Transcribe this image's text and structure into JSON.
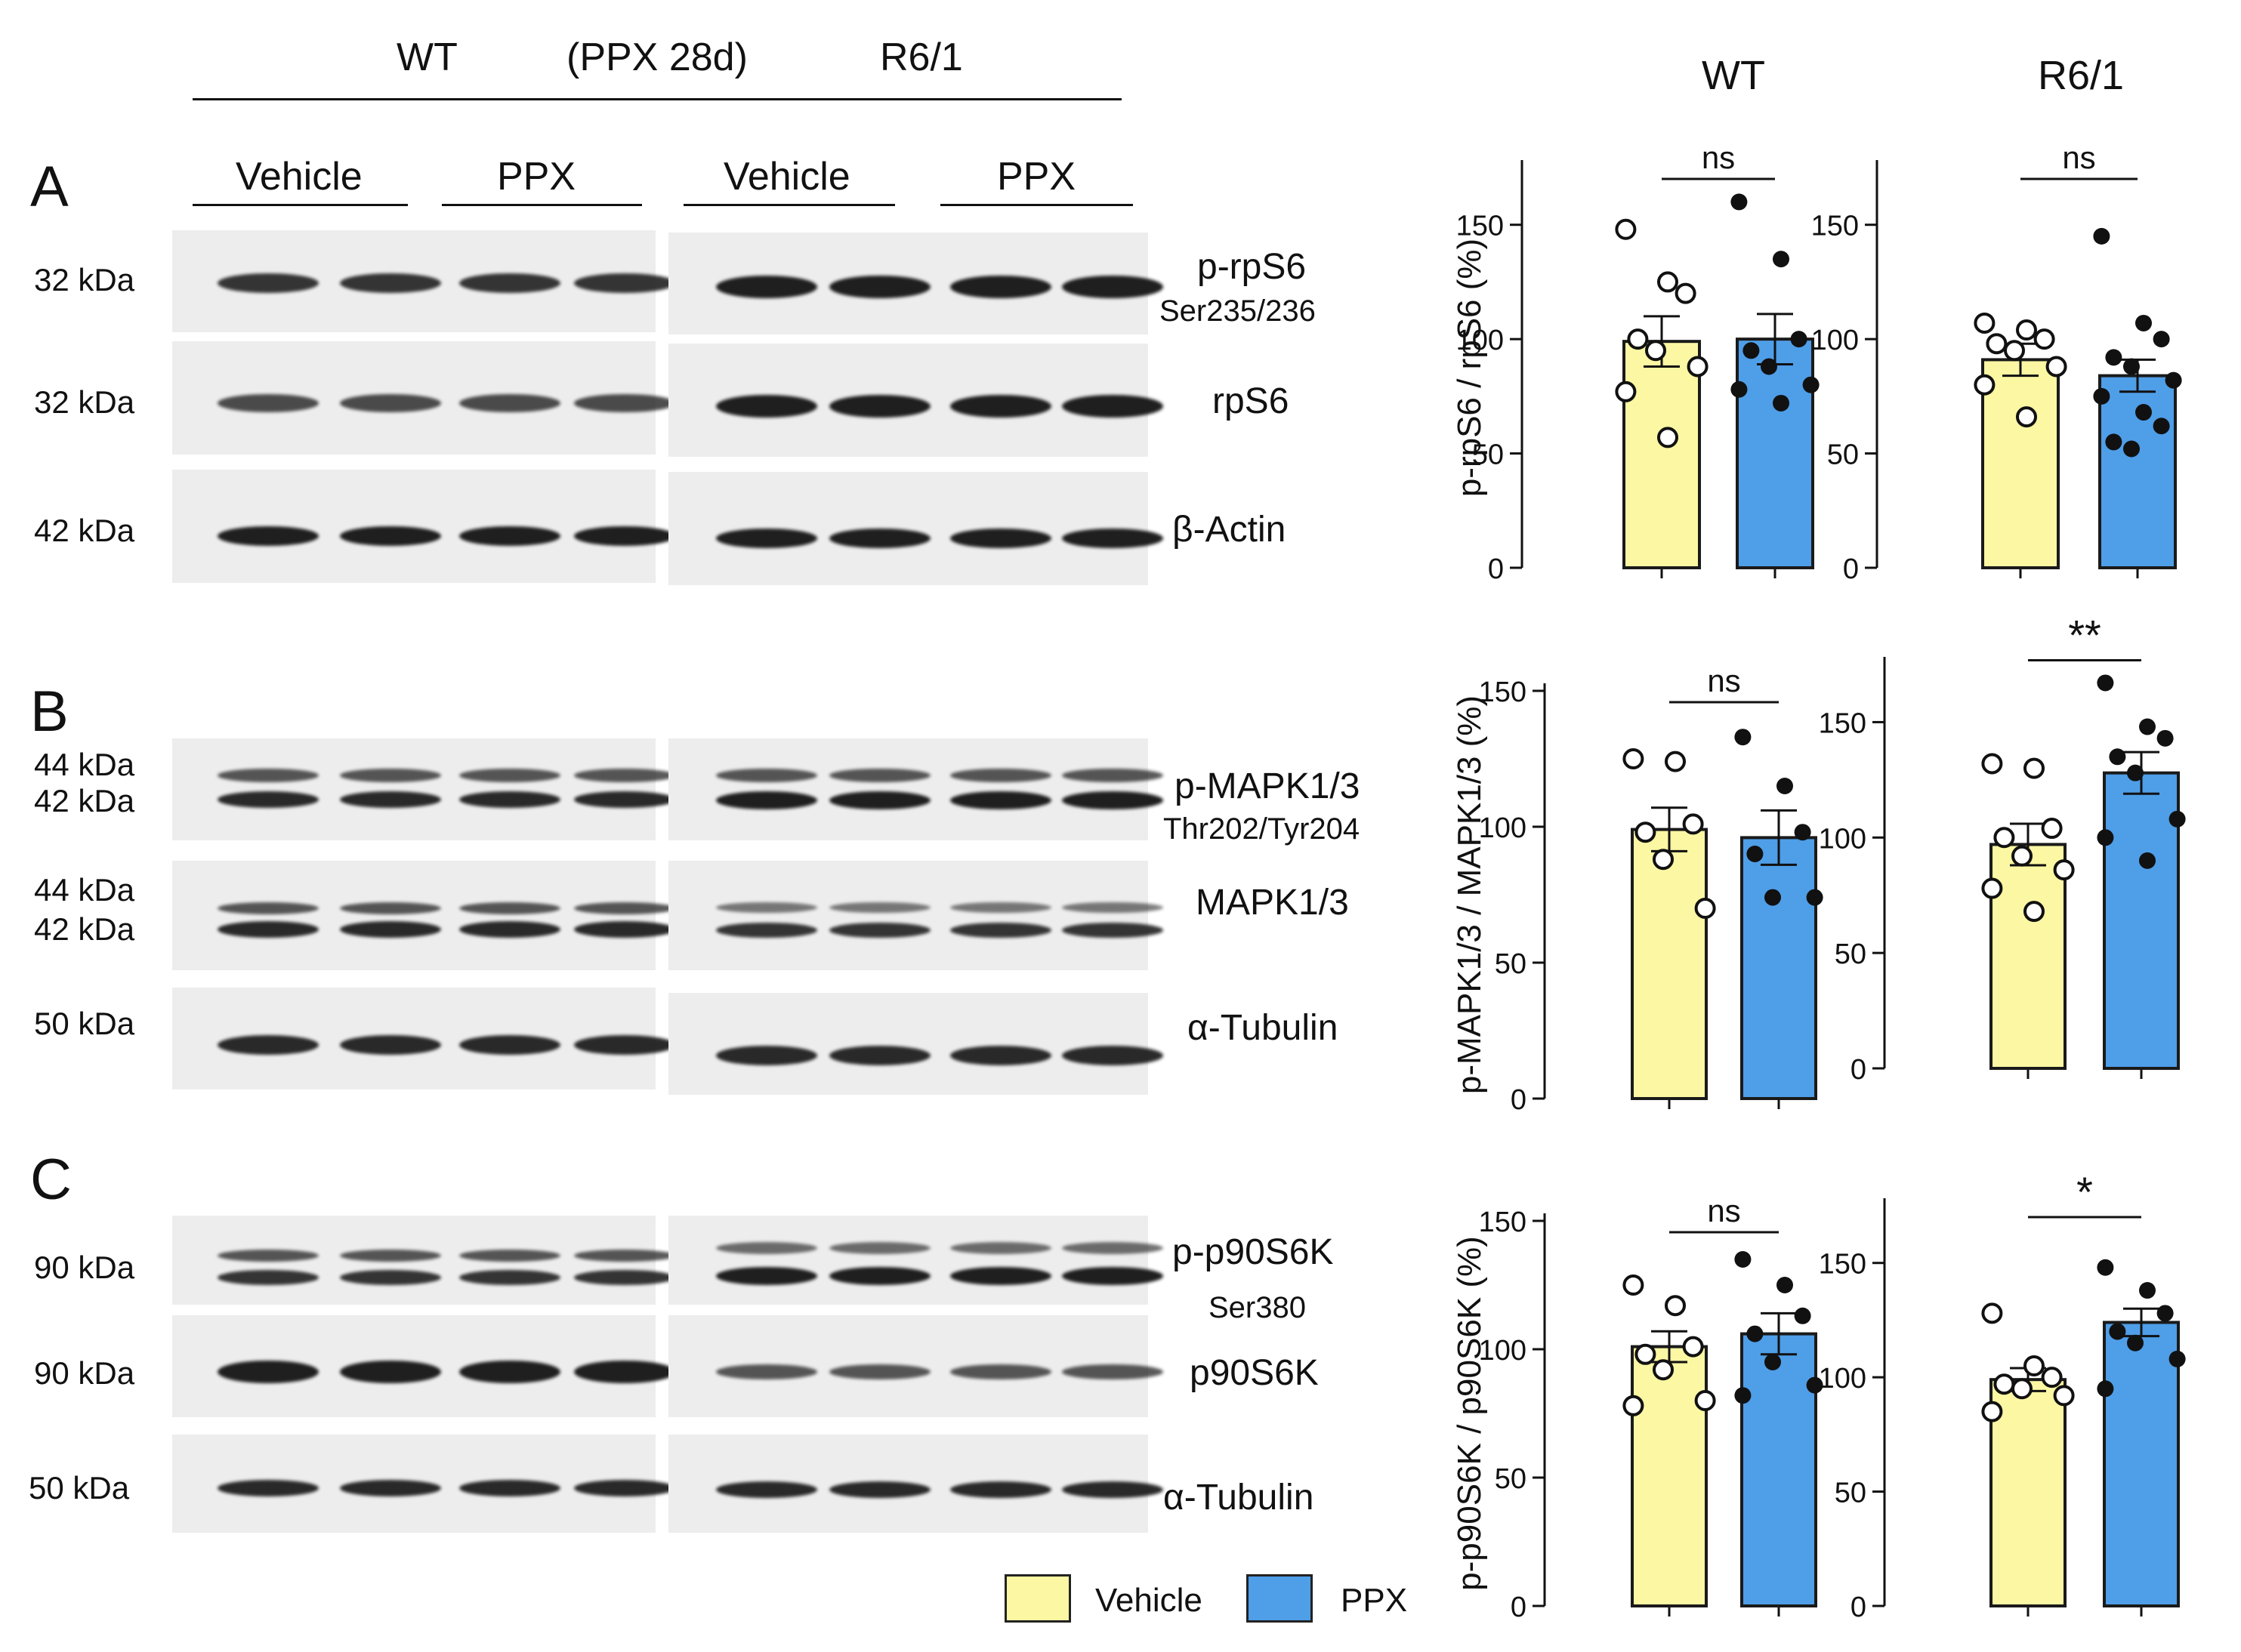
{
  "header": {
    "wt": "WT",
    "treatment": "(PPX 28d)",
    "r61": "R6/1"
  },
  "groups": {
    "vehicle": "Vehicle",
    "ppx": "PPX"
  },
  "panels": {
    "A": {
      "letter": "A",
      "rows": [
        {
          "kda": "32 kDa",
          "label": "p-rpS6",
          "sub": "Ser235/236"
        },
        {
          "kda": "32 kDa",
          "label": "rpS6",
          "sub": ""
        },
        {
          "kda": "42 kDa",
          "label": "β-Actin",
          "sub": ""
        }
      ]
    },
    "B": {
      "letter": "B",
      "rows": [
        {
          "kda": "44 kDa",
          "kda2": "42 kDa",
          "label": "p-MAPK1/3",
          "sub": "Thr202/Tyr204"
        },
        {
          "kda": "44 kDa",
          "kda2": "42 kDa",
          "label": "MAPK1/3",
          "sub": ""
        },
        {
          "kda": "50 kDa",
          "label": "α-Tubulin",
          "sub": ""
        }
      ]
    },
    "C": {
      "letter": "C",
      "rows": [
        {
          "kda": "90 kDa",
          "label": "p-p90S6K",
          "sub": "Ser380"
        },
        {
          "kda": "90 kDa",
          "label": "p90S6K",
          "sub": ""
        },
        {
          "kda": "50 kDa",
          "label": "α-Tubulin",
          "sub": ""
        }
      ]
    }
  },
  "colors": {
    "vehicle": "#fbf7a3",
    "ppx": "#4f9ee8",
    "bar_stroke": "#1a1a1a",
    "band": "#141414"
  },
  "legend": {
    "vehicle": "Vehicle",
    "ppx": "PPX"
  },
  "chart_data": [
    {
      "id": "A-WT",
      "type": "bar",
      "title": "WT",
      "ylabel": "p-rpS6 / rpS6 (%)",
      "ylim": [
        0,
        175
      ],
      "yticks": [
        0,
        50,
        100,
        150
      ],
      "sig": "ns",
      "categories": [
        "Vehicle",
        "PPX"
      ],
      "series": [
        {
          "name": "Vehicle",
          "mean": 99,
          "sem": 11,
          "points": [
            148,
            125,
            120,
            100,
            95,
            88,
            77,
            57
          ]
        },
        {
          "name": "PPX",
          "mean": 100,
          "sem": 11,
          "points": [
            160,
            135,
            100,
            95,
            88,
            80,
            78,
            72
          ]
        }
      ]
    },
    {
      "id": "A-R61",
      "type": "bar",
      "title": "R6/1",
      "ylabel": "",
      "ylim": [
        0,
        175
      ],
      "yticks": [
        0,
        50,
        100,
        150
      ],
      "sig": "ns",
      "categories": [
        "Vehicle",
        "PPX"
      ],
      "series": [
        {
          "name": "Vehicle",
          "mean": 91,
          "sem": 7,
          "points": [
            107,
            104,
            100,
            98,
            95,
            88,
            80,
            66
          ]
        },
        {
          "name": "PPX",
          "mean": 84,
          "sem": 7,
          "points": [
            145,
            107,
            100,
            92,
            88,
            82,
            75,
            68,
            62,
            55,
            52
          ]
        }
      ]
    },
    {
      "id": "B-WT",
      "type": "bar",
      "title": "",
      "ylabel": "p-MAPK1/3 / MAPK1/3 (%)",
      "ylim": [
        0,
        150
      ],
      "yticks": [
        0,
        50,
        100,
        150
      ],
      "sig": "ns",
      "categories": [
        "Vehicle",
        "PPX"
      ],
      "series": [
        {
          "name": "Vehicle",
          "mean": 99,
          "sem": 8,
          "points": [
            125,
            124,
            101,
            98,
            88,
            70
          ]
        },
        {
          "name": "PPX",
          "mean": 96,
          "sem": 10,
          "points": [
            133,
            115,
            98,
            90,
            74,
            74
          ]
        }
      ]
    },
    {
      "id": "B-R61",
      "type": "bar",
      "title": "",
      "ylabel": "",
      "ylim": [
        0,
        175
      ],
      "yticks": [
        0,
        50,
        100,
        150
      ],
      "sig": "**",
      "categories": [
        "Vehicle",
        "PPX"
      ],
      "series": [
        {
          "name": "Vehicle",
          "mean": 97,
          "sem": 9,
          "points": [
            132,
            130,
            104,
            100,
            92,
            86,
            78,
            68
          ]
        },
        {
          "name": "PPX",
          "mean": 128,
          "sem": 9,
          "points": [
            167,
            148,
            143,
            135,
            128,
            108,
            100,
            90
          ]
        }
      ]
    },
    {
      "id": "C-WT",
      "type": "bar",
      "title": "",
      "ylabel": "p-p90S6K / p90S6K (%)",
      "ylim": [
        0,
        150
      ],
      "yticks": [
        0,
        50,
        100,
        150
      ],
      "sig": "ns",
      "categories": [
        "Vehicle",
        "PPX"
      ],
      "series": [
        {
          "name": "Vehicle",
          "mean": 101,
          "sem": 6,
          "points": [
            125,
            117,
            101,
            98,
            92,
            80,
            78
          ]
        },
        {
          "name": "PPX",
          "mean": 106,
          "sem": 8,
          "points": [
            135,
            125,
            113,
            106,
            95,
            86,
            82
          ]
        }
      ]
    },
    {
      "id": "C-R61",
      "type": "bar",
      "title": "",
      "ylabel": "",
      "ylim": [
        0,
        175
      ],
      "yticks": [
        0,
        50,
        100,
        150
      ],
      "sig": "*",
      "categories": [
        "Vehicle",
        "PPX"
      ],
      "series": [
        {
          "name": "Vehicle",
          "mean": 99,
          "sem": 5,
          "points": [
            128,
            105,
            100,
            97,
            95,
            92,
            85
          ]
        },
        {
          "name": "PPX",
          "mean": 124,
          "sem": 6,
          "points": [
            148,
            138,
            128,
            120,
            115,
            108,
            95
          ]
        }
      ]
    }
  ]
}
